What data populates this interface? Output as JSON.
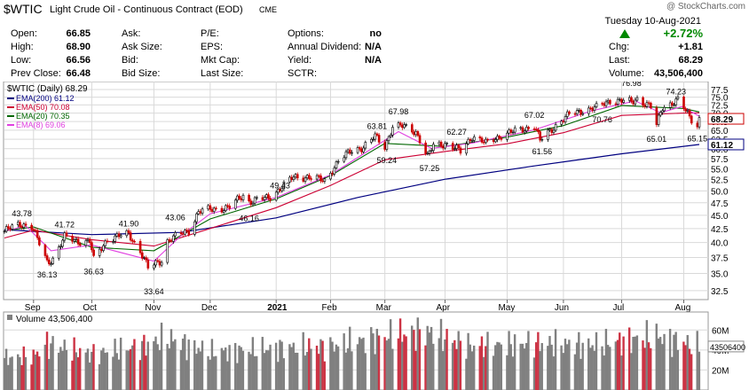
{
  "header": {
    "symbol": "$WTIC",
    "name": "Light Crude Oil - Continuous Contract (EOD)",
    "exchange": "CME",
    "copyright": "@ StockCharts.com",
    "date": "Tuesday  10-Aug-2021",
    "change_pct": "+2.72%",
    "rows": [
      {
        "l1": "Open:",
        "v1": "66.85",
        "l2": "Ask:",
        "v2": "",
        "l3": "P/E:",
        "v3": "",
        "l4": "Options:",
        "v4": "no"
      },
      {
        "l1": "High:",
        "v1": "68.90",
        "l2": "Ask Size:",
        "v2": "",
        "l3": "EPS:",
        "v3": "",
        "l4": "Annual Dividend:",
        "v4": "N/A"
      },
      {
        "l1": "Low:",
        "v1": "66.56",
        "l2": "Bid:",
        "v2": "",
        "l3": "Mkt Cap:",
        "v3": "",
        "l4": "Yield:",
        "v4": "N/A"
      },
      {
        "l1": "Prev Close:",
        "v1": "66.48",
        "l2": "Bid Size:",
        "v2": "",
        "l3": "Last Size:",
        "v3": "",
        "l4": "SCTR:",
        "v4": ""
      }
    ],
    "right_rows": [
      {
        "label": "Chg:",
        "value": "+1.81"
      },
      {
        "label": "Last:",
        "value": "68.29"
      },
      {
        "label": "Volume:",
        "value": "43,506,400"
      }
    ]
  },
  "colors": {
    "up": "#000000",
    "down": "#cc0000",
    "ema200": "#000080",
    "ema50": "#cc0033",
    "ema20": "#006600",
    "ema8": "#e040e0",
    "vol_up": "#808080",
    "vol_down": "#cc3344",
    "change_green": "#008800",
    "grid": "#d9d9d9"
  },
  "chart_data": [
    {
      "type": "candlestick",
      "title": "$WTIC (Daily) 68.29",
      "legend": [
        {
          "label": "EMA(200) 61.12",
          "color_key": "ema200"
        },
        {
          "label": "EMA(50) 70.08",
          "color_key": "ema50"
        },
        {
          "label": "EMA(20) 70.35",
          "color_key": "ema20"
        },
        {
          "label": "EMA(8) 69.06",
          "color_key": "ema8"
        }
      ],
      "legend_position": "top-left",
      "y_scale": "log",
      "ylim": [
        31.5,
        79
      ],
      "y_ticks": [
        "32.5",
        "35.0",
        "37.5",
        "40.0",
        "42.5",
        "45.0",
        "47.5",
        "50.0",
        "52.5",
        "55.0",
        "57.5",
        "60.0",
        "62.5",
        "65.0",
        "67.5",
        "70.0",
        "72.5",
        "75.0",
        "77.5"
      ],
      "x_ticks": [
        {
          "label": "Sep",
          "bold": false
        },
        {
          "label": "Oct",
          "bold": false
        },
        {
          "label": "Nov",
          "bold": false
        },
        {
          "label": "Dec",
          "bold": false
        },
        {
          "label": "2021",
          "bold": true
        },
        {
          "label": "Feb",
          "bold": false
        },
        {
          "label": "Mar",
          "bold": false
        },
        {
          "label": "Apr",
          "bold": false
        },
        {
          "label": "May",
          "bold": false
        },
        {
          "label": "Jun",
          "bold": false
        },
        {
          "label": "Jul",
          "bold": false
        },
        {
          "label": "Aug",
          "bold": false
        }
      ],
      "grid": true,
      "last_price": "68.29",
      "axis_tags": [
        {
          "value": "68.29",
          "color_key": "down"
        },
        {
          "value": "61.12",
          "color_key": "ema200"
        }
      ],
      "price_points": [
        {
          "date": "2020-08-17",
          "value": 42.0
        },
        {
          "date": "2020-08-25",
          "value": 43.4
        },
        {
          "date": "2020-08-31",
          "value": 42.9
        },
        {
          "date": "2020-09-04",
          "value": 39.8
        },
        {
          "date": "2020-09-08",
          "value": 36.8
        },
        {
          "date": "2020-09-11",
          "value": 37.3
        },
        {
          "date": "2020-09-17",
          "value": 40.9
        },
        {
          "date": "2020-09-25",
          "value": 40.2
        },
        {
          "date": "2020-09-30",
          "value": 40.2
        },
        {
          "date": "2020-10-02",
          "value": 37.1
        },
        {
          "date": "2020-10-09",
          "value": 40.6
        },
        {
          "date": "2020-10-20",
          "value": 41.5
        },
        {
          "date": "2020-10-26",
          "value": 38.6
        },
        {
          "date": "2020-10-30",
          "value": 35.8
        },
        {
          "date": "2020-11-06",
          "value": 37.1
        },
        {
          "date": "2020-11-09",
          "value": 40.3
        },
        {
          "date": "2020-11-20",
          "value": 42.2
        },
        {
          "date": "2020-11-25",
          "value": 45.7
        },
        {
          "date": "2020-12-04",
          "value": 46.3
        },
        {
          "date": "2020-12-11",
          "value": 46.6
        },
        {
          "date": "2020-12-18",
          "value": 49.1
        },
        {
          "date": "2020-12-21",
          "value": 47.8
        },
        {
          "date": "2020-12-31",
          "value": 48.5
        },
        {
          "date": "2021-01-06",
          "value": 50.6
        },
        {
          "date": "2021-01-13",
          "value": 53.0
        },
        {
          "date": "2021-01-20",
          "value": 53.2
        },
        {
          "date": "2021-01-29",
          "value": 52.2
        },
        {
          "date": "2021-02-05",
          "value": 56.9
        },
        {
          "date": "2021-02-12",
          "value": 59.5
        },
        {
          "date": "2021-02-18",
          "value": 60.5
        },
        {
          "date": "2021-02-24",
          "value": 63.2
        },
        {
          "date": "2021-03-01",
          "value": 60.6
        },
        {
          "date": "2021-03-05",
          "value": 66.1
        },
        {
          "date": "2021-03-11",
          "value": 66.0
        },
        {
          "date": "2021-03-17",
          "value": 64.6
        },
        {
          "date": "2021-03-23",
          "value": 57.8
        },
        {
          "date": "2021-03-26",
          "value": 60.9
        },
        {
          "date": "2021-04-01",
          "value": 61.4
        },
        {
          "date": "2021-04-09",
          "value": 59.3
        },
        {
          "date": "2021-04-15",
          "value": 63.4
        },
        {
          "date": "2021-04-22",
          "value": 61.4
        },
        {
          "date": "2021-04-30",
          "value": 63.6
        },
        {
          "date": "2021-05-11",
          "value": 65.3
        },
        {
          "date": "2021-05-17",
          "value": 66.3
        },
        {
          "date": "2021-05-20",
          "value": 62.1
        },
        {
          "date": "2021-05-28",
          "value": 66.4
        },
        {
          "date": "2021-06-04",
          "value": 69.5
        },
        {
          "date": "2021-06-11",
          "value": 70.9
        },
        {
          "date": "2021-06-18",
          "value": 71.6
        },
        {
          "date": "2021-06-25",
          "value": 74.0
        },
        {
          "date": "2021-07-06",
          "value": 73.4
        },
        {
          "date": "2021-07-09",
          "value": 74.6
        },
        {
          "date": "2021-07-16",
          "value": 71.8
        },
        {
          "date": "2021-07-19",
          "value": 66.4
        },
        {
          "date": "2021-07-22",
          "value": 71.9
        },
        {
          "date": "2021-07-30",
          "value": 73.9
        },
        {
          "date": "2021-08-03",
          "value": 70.6
        },
        {
          "date": "2021-08-06",
          "value": 68.3
        },
        {
          "date": "2021-08-09",
          "value": 66.5
        },
        {
          "date": "2021-08-10",
          "value": 68.29
        }
      ],
      "ema200_points": [
        {
          "date": "2020-08-17",
          "value": 42.3
        },
        {
          "date": "2020-10-01",
          "value": 41.4
        },
        {
          "date": "2020-11-16",
          "value": 41.8
        },
        {
          "date": "2021-01-04",
          "value": 44.5
        },
        {
          "date": "2021-02-15",
          "value": 48.6
        },
        {
          "date": "2021-04-01",
          "value": 52.6
        },
        {
          "date": "2021-05-17",
          "value": 55.7
        },
        {
          "date": "2021-07-01",
          "value": 58.7
        },
        {
          "date": "2021-08-10",
          "value": 61.12
        }
      ],
      "ema50_points": [
        {
          "date": "2020-08-17",
          "value": 40.8
        },
        {
          "date": "2020-09-01",
          "value": 42.2
        },
        {
          "date": "2020-10-01",
          "value": 40.5
        },
        {
          "date": "2020-11-02",
          "value": 39.4
        },
        {
          "date": "2020-12-01",
          "value": 42.5
        },
        {
          "date": "2021-01-04",
          "value": 46.5
        },
        {
          "date": "2021-02-01",
          "value": 51.2
        },
        {
          "date": "2021-03-01",
          "value": 57.2
        },
        {
          "date": "2021-04-01",
          "value": 59.3
        },
        {
          "date": "2021-05-03",
          "value": 61.3
        },
        {
          "date": "2021-06-01",
          "value": 64.3
        },
        {
          "date": "2021-07-01",
          "value": 69.3
        },
        {
          "date": "2021-08-02",
          "value": 70.0
        },
        {
          "date": "2021-08-10",
          "value": 70.08
        }
      ],
      "ema20_points": [
        {
          "date": "2020-08-17",
          "value": 42.1
        },
        {
          "date": "2020-09-01",
          "value": 42.8
        },
        {
          "date": "2020-10-01",
          "value": 39.2
        },
        {
          "date": "2020-11-02",
          "value": 38.6
        },
        {
          "date": "2020-12-01",
          "value": 44.3
        },
        {
          "date": "2021-01-04",
          "value": 48.3
        },
        {
          "date": "2021-02-01",
          "value": 53.4
        },
        {
          "date": "2021-03-01",
          "value": 61.4
        },
        {
          "date": "2021-04-01",
          "value": 60.6
        },
        {
          "date": "2021-05-03",
          "value": 63.1
        },
        {
          "date": "2021-06-01",
          "value": 66.3
        },
        {
          "date": "2021-07-01",
          "value": 72.3
        },
        {
          "date": "2021-08-02",
          "value": 71.4
        },
        {
          "date": "2021-08-10",
          "value": 70.35
        }
      ],
      "ema8_points": [
        {
          "date": "2020-08-17",
          "value": 42.0
        },
        {
          "date": "2020-08-28",
          "value": 43.0
        },
        {
          "date": "2020-09-10",
          "value": 38.6
        },
        {
          "date": "2020-10-01",
          "value": 39.6
        },
        {
          "date": "2020-11-02",
          "value": 36.9
        },
        {
          "date": "2020-11-16",
          "value": 41.2
        },
        {
          "date": "2020-12-01",
          "value": 45.3
        },
        {
          "date": "2021-01-04",
          "value": 48.6
        },
        {
          "date": "2021-02-01",
          "value": 53.6
        },
        {
          "date": "2021-03-08",
          "value": 64.6
        },
        {
          "date": "2021-03-25",
          "value": 60.1
        },
        {
          "date": "2021-04-15",
          "value": 61.5
        },
        {
          "date": "2021-05-17",
          "value": 65.1
        },
        {
          "date": "2021-06-15",
          "value": 70.6
        },
        {
          "date": "2021-07-08",
          "value": 73.8
        },
        {
          "date": "2021-07-21",
          "value": 70.1
        },
        {
          "date": "2021-08-01",
          "value": 72.0
        },
        {
          "date": "2021-08-10",
          "value": 69.06
        }
      ],
      "annotations": [
        {
          "date": "2020-08-26",
          "value": 43.78,
          "label": "43.78",
          "pos": "above"
        },
        {
          "date": "2020-09-08",
          "value": 36.13,
          "label": "36.13",
          "pos": "below"
        },
        {
          "date": "2020-09-17",
          "value": 41.72,
          "label": "41.72",
          "pos": "above"
        },
        {
          "date": "2020-10-02",
          "value": 36.63,
          "label": "36.63",
          "pos": "below"
        },
        {
          "date": "2020-10-20",
          "value": 41.9,
          "label": "41.90",
          "pos": "above"
        },
        {
          "date": "2020-11-02",
          "value": 33.64,
          "label": "33.64",
          "pos": "below"
        },
        {
          "date": "2020-11-13",
          "value": 43.06,
          "label": "43.06",
          "pos": "above"
        },
        {
          "date": "2020-12-21",
          "value": 46.16,
          "label": "46.16",
          "pos": "below"
        },
        {
          "date": "2021-01-06",
          "value": 49.43,
          "label": "49.43",
          "pos": "above"
        },
        {
          "date": "2021-02-25",
          "value": 63.81,
          "label": "63.81",
          "pos": "above"
        },
        {
          "date": "2021-03-08",
          "value": 67.98,
          "label": "67.98",
          "pos": "above"
        },
        {
          "date": "2021-03-02",
          "value": 59.24,
          "label": "59.24",
          "pos": "below"
        },
        {
          "date": "2021-03-24",
          "value": 57.25,
          "label": "57.25",
          "pos": "below"
        },
        {
          "date": "2021-04-07",
          "value": 62.27,
          "label": "62.27",
          "pos": "above"
        },
        {
          "date": "2021-05-17",
          "value": 67.02,
          "label": "67.02",
          "pos": "above"
        },
        {
          "date": "2021-05-21",
          "value": 61.56,
          "label": "61.56",
          "pos": "below"
        },
        {
          "date": "2021-07-06",
          "value": 76.98,
          "label": "76.98",
          "pos": "above"
        },
        {
          "date": "2021-06-21",
          "value": 70.76,
          "label": "70.76",
          "pos": "below"
        },
        {
          "date": "2021-07-19",
          "value": 65.01,
          "label": "65.01",
          "pos": "below"
        },
        {
          "date": "2021-07-29",
          "value": 74.23,
          "label": "74.23",
          "pos": "above"
        },
        {
          "date": "2021-08-09",
          "value": 65.15,
          "label": "65.15",
          "pos": "below"
        }
      ]
    },
    {
      "type": "bar",
      "title": "Volume 43,506,400",
      "ylim": [
        0,
        78
      ],
      "y_ticks": [
        {
          "value": 60,
          "label": "60M"
        },
        {
          "value": 40,
          "label": "40M"
        },
        {
          "value": 20,
          "label": "20M"
        }
      ],
      "last_volume": "43506400",
      "volume_series": [
        {
          "date": "2020-08-17",
          "value": 32
        },
        {
          "date": "2020-09-01",
          "value": 34
        },
        {
          "date": "2020-09-08",
          "value": 46
        },
        {
          "date": "2020-10-01",
          "value": 36
        },
        {
          "date": "2020-10-26",
          "value": 44
        },
        {
          "date": "2020-11-09",
          "value": 52
        },
        {
          "date": "2020-12-01",
          "value": 38
        },
        {
          "date": "2021-01-04",
          "value": 42
        },
        {
          "date": "2021-02-01",
          "value": 44
        },
        {
          "date": "2021-03-08",
          "value": 56
        },
        {
          "date": "2021-03-23",
          "value": 58
        },
        {
          "date": "2021-04-15",
          "value": 44
        },
        {
          "date": "2021-05-17",
          "value": 47
        },
        {
          "date": "2021-06-15",
          "value": 45
        },
        {
          "date": "2021-07-19",
          "value": 54
        },
        {
          "date": "2021-08-10",
          "value": 43.5
        }
      ]
    }
  ]
}
